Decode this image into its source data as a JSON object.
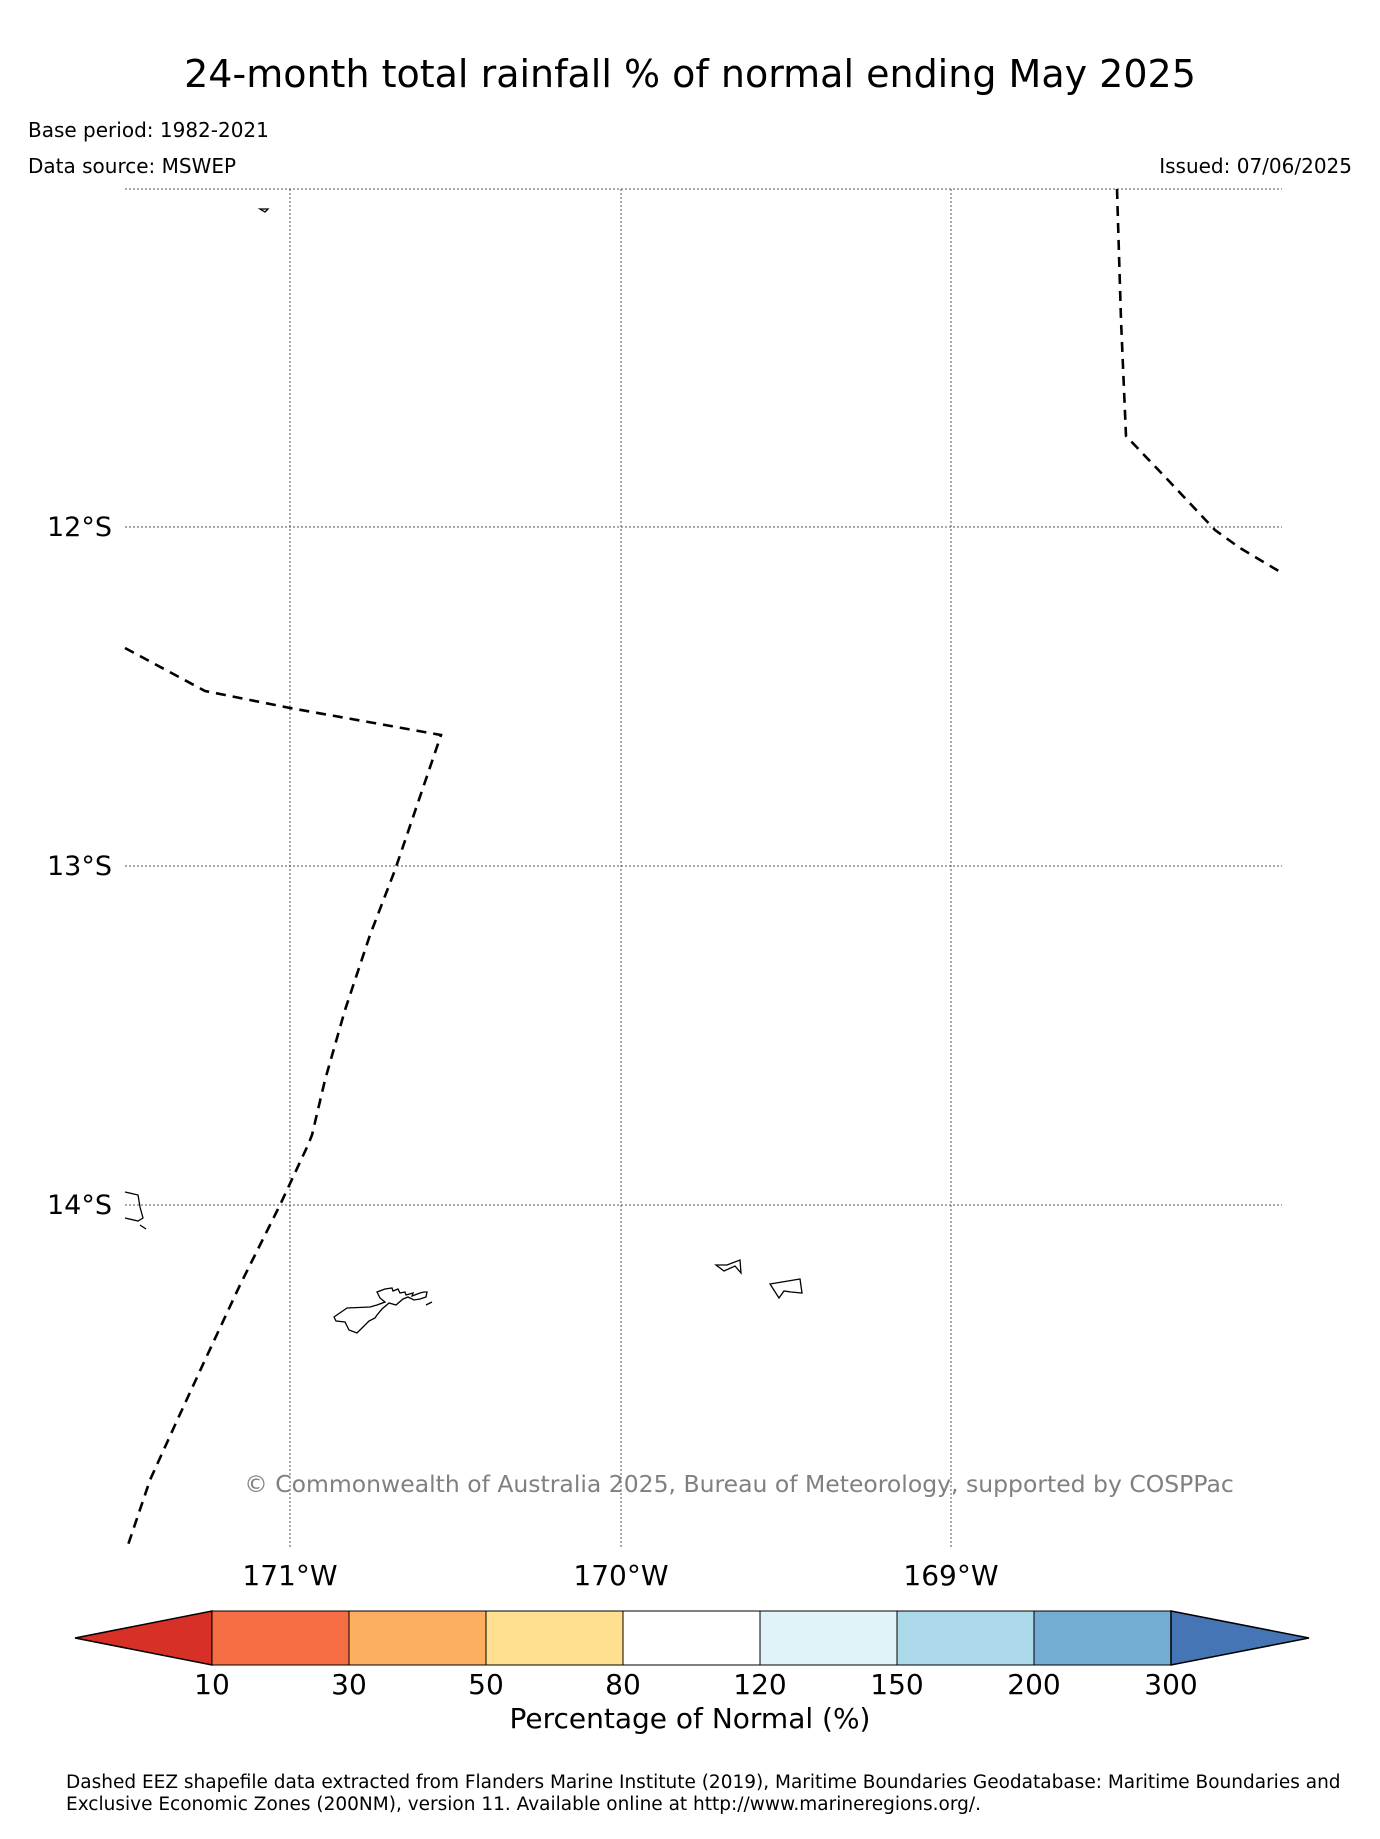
{
  "title": "24-month total rainfall % of normal ending May 2025",
  "base_period": "Base period: 1982-2021",
  "data_source": "Data source: MSWEP",
  "issued": "Issued: 07/06/2025",
  "copyright": "© Commonwealth of Australia 2025, Bureau of Meteorology, supported by COSPPac",
  "map": {
    "lon_range": [
      -171.5,
      -168.0
    ],
    "lat_range": [
      -15.0,
      -11.0
    ],
    "lat_labels": [
      "12°S",
      "13°S",
      "14°S"
    ],
    "lon_labels": [
      "171°W",
      "170°W",
      "169°W"
    ],
    "gridlines": true
  },
  "colorbar": {
    "title": "Percentage of Normal (%)",
    "ticks": [
      "10",
      "30",
      "50",
      "80",
      "120",
      "150",
      "200",
      "300"
    ],
    "colors": [
      "#d73027",
      "#f46d43",
      "#fdae61",
      "#fee090",
      "#ffffff",
      "#e0f3f8",
      "#abd9e9",
      "#74add1",
      "#4575b4"
    ]
  },
  "footnote": "Dashed EEZ shapefile data extracted from Flanders Marine Institute (2019), Maritime Boundaries Geodatabase: Maritime Boundaries and Exclusive Economic Zones (200NM), version 11. Available online at http://www.marineregions.org/."
}
